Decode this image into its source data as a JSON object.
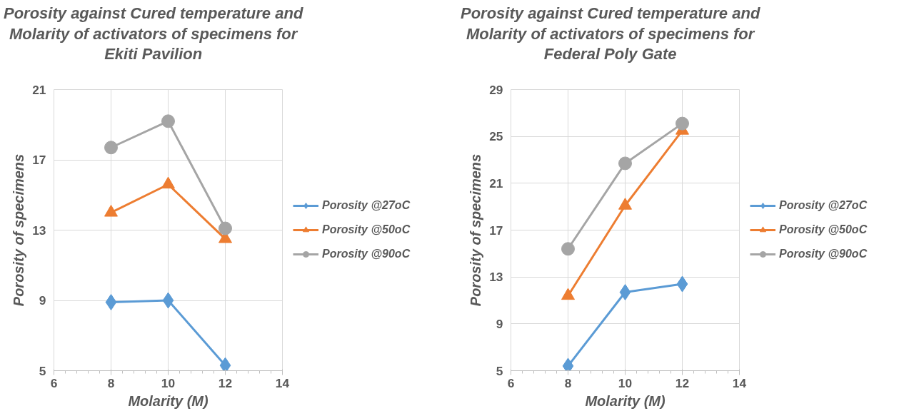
{
  "chart_data": [
    {
      "type": "line",
      "title": "Porosity against Cured temperature and\nMolarity of activators of specimens for\nEkiti Pavilion",
      "xlabel": "Molarity (M)",
      "ylabel": "Porosity of specimens",
      "x": [
        8,
        10,
        12
      ],
      "xlim": [
        6,
        14
      ],
      "xticks": [
        6,
        8,
        10,
        12,
        14
      ],
      "ylim": [
        5,
        21
      ],
      "yticks": [
        5,
        9,
        13,
        17,
        21
      ],
      "grid": true,
      "legend": "right",
      "series": [
        {
          "name": "Porosity @27oC",
          "color": "#5b9bd5",
          "marker": "diamond",
          "values": [
            8.9,
            9.0,
            5.3
          ]
        },
        {
          "name": "Porosity @50oC",
          "color": "#ed7d31",
          "marker": "triangle",
          "values": [
            14.0,
            15.6,
            12.5
          ]
        },
        {
          "name": "Porosity @90oC",
          "color": "#a5a5a5",
          "marker": "circle",
          "values": [
            17.7,
            19.2,
            13.1
          ]
        }
      ]
    },
    {
      "type": "line",
      "title": "Porosity against Cured temperature and\nMolarity of activators of specimens for\nFederal Poly Gate",
      "xlabel": "Molarity (M)",
      "ylabel": "Porosity of specimens",
      "x": [
        8,
        10,
        12
      ],
      "xlim": [
        6,
        14
      ],
      "xticks": [
        6,
        8,
        10,
        12,
        14
      ],
      "ylim": [
        5,
        29
      ],
      "yticks": [
        5,
        9,
        13,
        17,
        21,
        25,
        29
      ],
      "grid": true,
      "legend": "right",
      "series": [
        {
          "name": "Porosity @27oC",
          "color": "#5b9bd5",
          "marker": "diamond",
          "values": [
            5.4,
            11.7,
            12.4
          ]
        },
        {
          "name": "Porosity @50oC",
          "color": "#ed7d31",
          "marker": "triangle",
          "values": [
            11.4,
            19.1,
            25.5
          ]
        },
        {
          "name": "Porosity @90oC",
          "color": "#a5a5a5",
          "marker": "circle",
          "values": [
            15.4,
            22.7,
            26.1
          ]
        }
      ]
    }
  ]
}
